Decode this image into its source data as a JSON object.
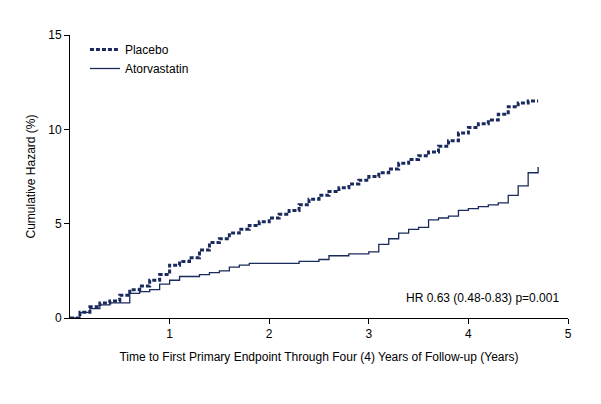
{
  "chart_data": {
    "type": "line",
    "x_label": "Time to First Primary Endpoint Through Four (4) Years of Follow-up (Years)",
    "y_label": "Cumulative Hazard (%)",
    "x": [
      0,
      0.1,
      0.2,
      0.3,
      0.4,
      0.5,
      0.6,
      0.7,
      0.8,
      0.9,
      1.0,
      1.1,
      1.2,
      1.3,
      1.4,
      1.5,
      1.6,
      1.7,
      1.8,
      1.9,
      2.0,
      2.1,
      2.2,
      2.3,
      2.4,
      2.5,
      2.6,
      2.7,
      2.8,
      2.9,
      3.0,
      3.1,
      3.2,
      3.3,
      3.4,
      3.5,
      3.6,
      3.7,
      3.8,
      3.9,
      4.0,
      4.1,
      4.2,
      4.3,
      4.4,
      4.5,
      4.6,
      4.7
    ],
    "series": [
      {
        "name": "Placebo",
        "color": "#1b2a5c",
        "line_style": "dashed",
        "values": [
          0,
          0.3,
          0.6,
          0.8,
          0.9,
          1.2,
          1.5,
          1.7,
          2.0,
          2.3,
          2.8,
          3.0,
          3.2,
          3.6,
          4.0,
          4.2,
          4.5,
          4.7,
          4.9,
          5.1,
          5.3,
          5.5,
          5.7,
          6.0,
          6.3,
          6.5,
          6.7,
          6.9,
          7.1,
          7.3,
          7.5,
          7.7,
          7.9,
          8.2,
          8.4,
          8.6,
          8.8,
          9.1,
          9.4,
          9.8,
          10.1,
          10.3,
          10.5,
          10.8,
          11.2,
          11.4,
          11.5,
          11.5
        ]
      },
      {
        "name": "Atorvastatin",
        "color": "#1b2a5c",
        "line_style": "solid",
        "values": [
          0,
          0.3,
          0.5,
          0.7,
          0.8,
          0.8,
          1.3,
          1.4,
          1.5,
          1.8,
          2.0,
          2.2,
          2.2,
          2.3,
          2.4,
          2.5,
          2.7,
          2.8,
          2.9,
          2.9,
          2.9,
          2.9,
          2.9,
          3.0,
          3.0,
          3.1,
          3.3,
          3.3,
          3.4,
          3.4,
          3.5,
          3.9,
          4.2,
          4.5,
          4.7,
          4.8,
          5.2,
          5.3,
          5.4,
          5.7,
          5.8,
          5.9,
          6.0,
          6.1,
          6.5,
          7.0,
          7.7,
          8.0
        ]
      }
    ],
    "xlim": [
      0,
      5
    ],
    "xticks": [
      1,
      2,
      3,
      4,
      5
    ],
    "ylim": [
      0,
      15
    ],
    "yticks": [
      0,
      5,
      10,
      15
    ],
    "annotations": [
      "HR 0.63 (0.48-0.83) p=0.001"
    ],
    "legend": "upper left",
    "grid": false
  }
}
